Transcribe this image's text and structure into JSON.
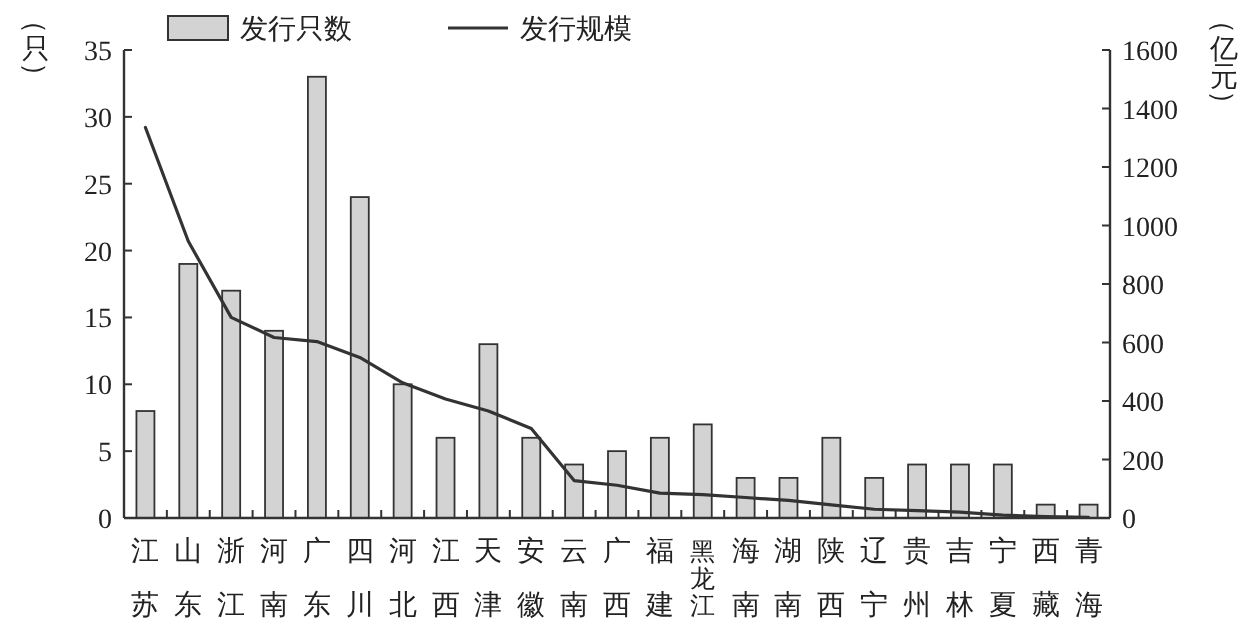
{
  "chart_data": {
    "type": "bar",
    "ylabel": "（只）",
    "y2label": "（亿元）",
    "categories": [
      "江苏",
      "山东",
      "浙江",
      "河南",
      "广东",
      "四川",
      "河北",
      "江西",
      "天津",
      "安徽",
      "云南",
      "广西",
      "福建",
      "黑龙江",
      "海南",
      "湖南",
      "陕西",
      "辽宁",
      "贵州",
      "吉林",
      "宁夏",
      "西藏",
      "青海"
    ],
    "series": [
      {
        "name": "发行只数",
        "color": "#d3d3d3",
        "values": [
          8,
          19,
          17,
          14,
          33,
          24,
          10,
          6,
          13,
          6,
          4,
          5,
          6,
          7,
          3,
          3,
          6,
          3,
          4,
          4,
          4,
          1,
          1
        ]
      },
      {
        "name": "发行规模",
        "type": "line",
        "axis": "y2",
        "color": "#333333",
        "values": [
          1335,
          946,
          686,
          617,
          603,
          549,
          462,
          407,
          366,
          306,
          128,
          112,
          85,
          80,
          70,
          60,
          45,
          30,
          25,
          20,
          10,
          5,
          2
        ]
      }
    ],
    "ylim": [
      0,
      35
    ],
    "yticks": [
      0,
      5,
      10,
      15,
      20,
      25,
      30,
      35
    ],
    "y2lim": [
      0,
      1600
    ],
    "y2ticks": [
      0,
      200,
      400,
      600,
      800,
      1000,
      1200,
      1400,
      1600
    ],
    "legend": "top",
    "grid": false,
    "line_style": "solid",
    "marker": "none"
  }
}
